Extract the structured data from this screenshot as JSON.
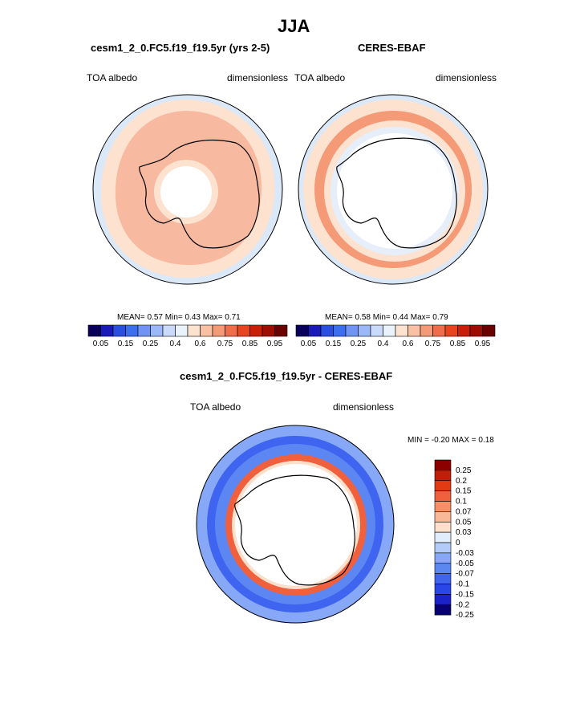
{
  "figure": {
    "title": "JJA",
    "panel_left": {
      "title": "cesm1_2_0.FC5.f19_f19.5yr (yrs 2-5)",
      "var_label": "TOA albedo",
      "units": "dimensionless",
      "stats": {
        "mean_label": "MEAN=",
        "mean": "0.57",
        "min_label": "Min=",
        "min": "0.43",
        "max_label": "Max=",
        "max": "0.71"
      }
    },
    "panel_right": {
      "title": "CERES-EBAF",
      "var_label": "TOA albedo",
      "units": "dimensionless",
      "stats": {
        "mean_label": "MEAN=",
        "mean": "0.58",
        "min_label": "Min=",
        "min": "0.44",
        "max_label": "Max=",
        "max": "0.79"
      }
    },
    "panel_diff": {
      "title": "cesm1_2_0.FC5.f19_f19.5yr - CERES-EBAF",
      "var_label": "TOA albedo",
      "units": "dimensionless",
      "stats": {
        "min_label": "MIN =",
        "min": "-0.20",
        "max_label": "MAX =",
        "max": "0.18"
      }
    }
  },
  "chart_data": [
    {
      "type": "heatmap",
      "projection": "south-polar-stereographic",
      "title": "cesm1_2_0.FC5.f19_f19.5yr (yrs 2-5)",
      "variable": "TOA albedo",
      "units": "dimensionless",
      "mean": 0.57,
      "min": 0.43,
      "max": 0.71,
      "colorbar": {
        "orientation": "horizontal",
        "colors": [
          "#08005a",
          "#1a1ab8",
          "#2a4fe0",
          "#3c6ef0",
          "#6f94f5",
          "#9db8f8",
          "#c9dafb",
          "#eaf2fc",
          "#fde2cf",
          "#f9c0a3",
          "#f59a77",
          "#ef6d4a",
          "#e8441f",
          "#c81e0a",
          "#9e0c02",
          "#6b0000"
        ],
        "tick_labels": [
          "0.05",
          "0.15",
          "0.25",
          "0.4",
          "0.6",
          "0.75",
          "0.85",
          "0.95"
        ]
      },
      "regions": [
        {
          "name": "outer ocean",
          "value": 0.35,
          "color": "#dbe8f8"
        },
        {
          "name": "mid ring",
          "value": 0.55,
          "color": "#fde2cf"
        },
        {
          "name": "main band",
          "value": 0.63,
          "color": "#f7b9a0"
        },
        {
          "name": "polar interior",
          "value": 0.5,
          "color": "#fde2cf"
        },
        {
          "name": "pole",
          "value": null,
          "color": "#ffffff"
        }
      ]
    },
    {
      "type": "heatmap",
      "projection": "south-polar-stereographic",
      "title": "CERES-EBAF",
      "variable": "TOA albedo",
      "units": "dimensionless",
      "mean": 0.58,
      "min": 0.44,
      "max": 0.79,
      "colorbar": {
        "orientation": "horizontal",
        "colors": [
          "#08005a",
          "#1a1ab8",
          "#2a4fe0",
          "#3c6ef0",
          "#6f94f5",
          "#9db8f8",
          "#c9dafb",
          "#eaf2fc",
          "#fde2cf",
          "#f9c0a3",
          "#f59a77",
          "#ef6d4a",
          "#e8441f",
          "#c81e0a",
          "#9e0c02",
          "#6b0000"
        ],
        "tick_labels": [
          "0.05",
          "0.15",
          "0.25",
          "0.4",
          "0.6",
          "0.75",
          "0.85",
          "0.95"
        ]
      },
      "regions": [
        {
          "name": "outer ocean",
          "value": 0.35,
          "color": "#dbe8f8"
        },
        {
          "name": "outer ring",
          "value": 0.55,
          "color": "#fde2cf"
        },
        {
          "name": "high band",
          "value": 0.7,
          "color": "#f59a77"
        },
        {
          "name": "inner light ring",
          "value": 0.45,
          "color": "#e6eef9"
        },
        {
          "name": "continent",
          "value": null,
          "color": "#ffffff"
        }
      ]
    },
    {
      "type": "heatmap",
      "projection": "south-polar-stereographic",
      "title": "cesm1_2_0.FC5.f19_f19.5yr - CERES-EBAF",
      "variable": "TOA albedo",
      "units": "dimensionless",
      "min": -0.2,
      "max": 0.18,
      "colorbar": {
        "orientation": "vertical",
        "colors": [
          "#08006e",
          "#1a22c8",
          "#2a46e6",
          "#3f64f0",
          "#5c86f2",
          "#86a8f6",
          "#b3cbf9",
          "#e2edfb",
          "#fde0cc",
          "#f9b999",
          "#f68e68",
          "#f1603c",
          "#e33a14",
          "#c21d05",
          "#8c0000"
        ],
        "tick_labels": [
          "-0.25",
          "-0.2",
          "-0.15",
          "-0.1",
          "-0.07",
          "-0.05",
          "-0.03",
          "0",
          "0.03",
          "0.05",
          "0.07",
          "0.1",
          "0.15",
          "0.2",
          "0.25"
        ]
      },
      "regions": [
        {
          "name": "outer ocean",
          "value": -0.07,
          "color": "#5c86f2"
        },
        {
          "name": "mid ocean",
          "value": -0.1,
          "color": "#3f64f0"
        },
        {
          "name": "ice edge band",
          "value": 0.1,
          "color": "#f1603c"
        },
        {
          "name": "continent",
          "value": null,
          "color": "#ffffff"
        }
      ]
    }
  ]
}
